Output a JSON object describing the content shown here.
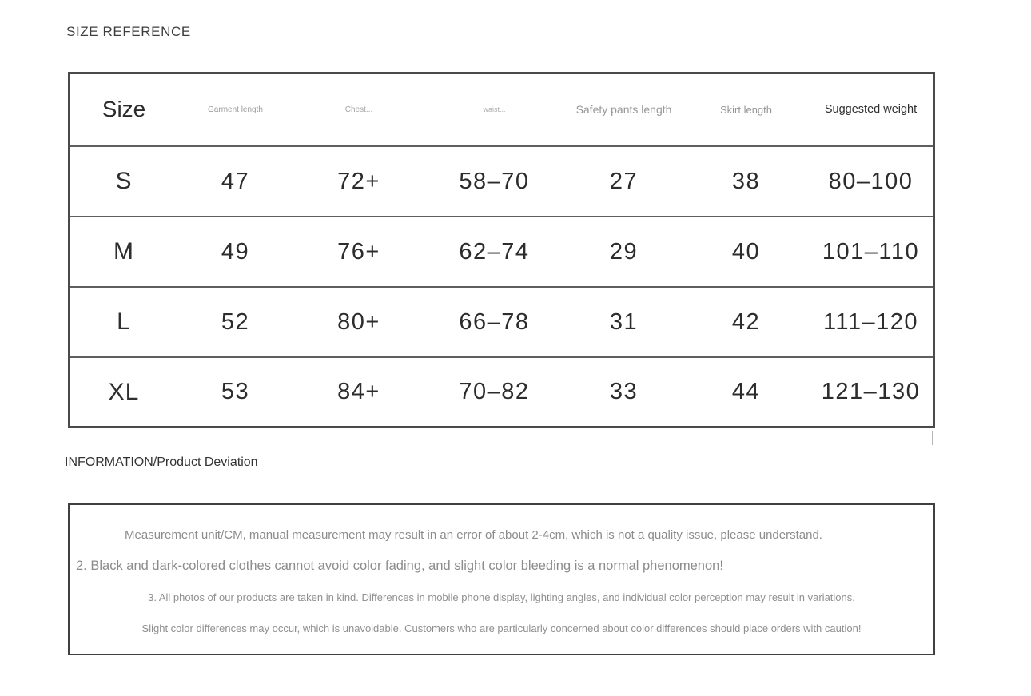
{
  "size_reference": {
    "title": "SIZE REFERENCE",
    "table": {
      "headers": [
        "Size",
        "Garment length",
        "Chest...",
        "waist...",
        "Safety pants length",
        "Skirt length",
        "Suggested weight"
      ],
      "rows": [
        [
          "S",
          "47",
          "72+",
          "58–70",
          "27",
          "38",
          "80–100"
        ],
        [
          "M",
          "49",
          "76+",
          "62–74",
          "29",
          "40",
          "101–110"
        ],
        [
          "L",
          "52",
          "80+",
          "66–78",
          "31",
          "42",
          "111–120"
        ],
        [
          "XL",
          "53",
          "84+",
          "70–82",
          "33",
          "44",
          "121–130"
        ]
      ]
    }
  },
  "information": {
    "title": "INFORMATION/Product Deviation",
    "notes": [
      "Measurement unit/CM, manual measurement may result in an error of about 2-4cm, which is not a quality issue, please understand.",
      "2. Black and dark-colored clothes cannot avoid color fading, and slight color bleeding is a normal phenomenon!",
      "3. All photos of our products are taken in kind. Differences in mobile phone display, lighting angles, and individual color perception may result in variations.",
      "Slight color differences may occur, which is unavoidable. Customers who are particularly concerned about color differences should place orders with caution!"
    ]
  }
}
